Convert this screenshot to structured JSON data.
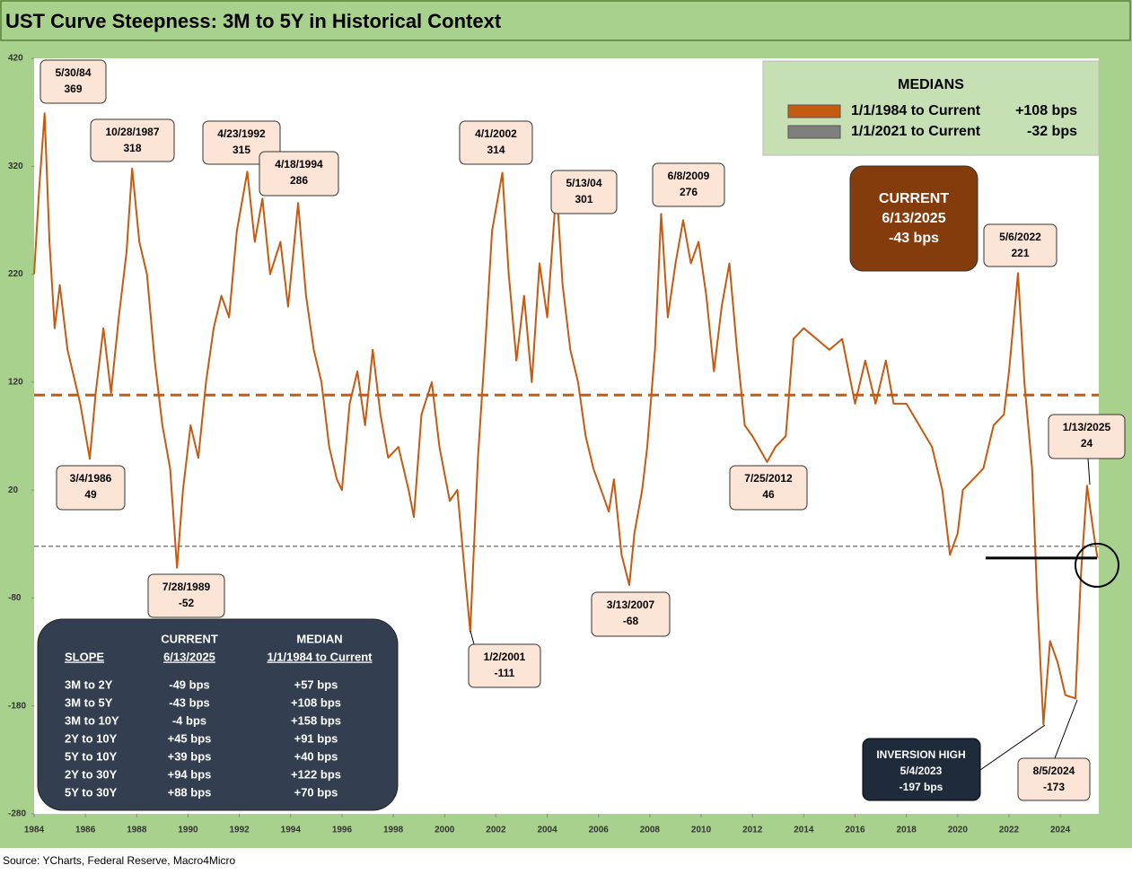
{
  "chart_data": {
    "type": "line",
    "title": "UST Curve Steepness: 3M to 5Y in Historical Context",
    "source": "Source: YCharts, Federal Reserve, Macro4Micro",
    "xlim": [
      1984,
      2025.5
    ],
    "xticks": [
      1984,
      1986,
      1988,
      1990,
      1992,
      1994,
      1996,
      1998,
      2000,
      2002,
      2004,
      2006,
      2008,
      2010,
      2012,
      2014,
      2016,
      2018,
      2020,
      2022,
      2024
    ],
    "ylim": [
      -280,
      420
    ],
    "yticks": [
      -280,
      -180,
      -80,
      20,
      120,
      220,
      320,
      420
    ],
    "series": [
      {
        "name": "3M to 5Y",
        "color": "#c55a11",
        "x": [
          1984.0,
          1984.2,
          1984.41,
          1984.6,
          1984.8,
          1985.0,
          1985.3,
          1985.6,
          1985.8,
          1986.17,
          1986.4,
          1986.7,
          1987.0,
          1987.3,
          1987.6,
          1987.82,
          1988.1,
          1988.4,
          1988.7,
          1989.0,
          1989.3,
          1989.57,
          1989.8,
          1990.1,
          1990.4,
          1990.7,
          1991.0,
          1991.3,
          1991.6,
          1991.9,
          1992.31,
          1992.6,
          1992.9,
          1993.2,
          1993.6,
          1993.9,
          1994.29,
          1994.6,
          1994.9,
          1995.2,
          1995.5,
          1995.8,
          1996.0,
          1996.3,
          1996.6,
          1996.9,
          1997.2,
          1997.5,
          1997.8,
          1998.2,
          1998.6,
          1998.8,
          1999.1,
          1999.5,
          1999.8,
          2000.2,
          2000.5,
          2000.8,
          2001.0,
          2001.3,
          2001.6,
          2001.85,
          2002.25,
          2002.5,
          2002.8,
          2003.1,
          2003.4,
          2003.7,
          2004.0,
          2004.36,
          2004.6,
          2004.9,
          2005.2,
          2005.5,
          2005.8,
          2006.1,
          2006.4,
          2006.6,
          2006.9,
          2007.2,
          2007.4,
          2007.7,
          2007.9,
          2008.2,
          2008.44,
          2008.7,
          2009.0,
          2009.3,
          2009.6,
          2009.9,
          2010.2,
          2010.5,
          2010.8,
          2011.1,
          2011.4,
          2011.7,
          2012.0,
          2012.57,
          2012.9,
          2013.3,
          2013.6,
          2014.0,
          2014.5,
          2015.0,
          2015.5,
          2016.0,
          2016.4,
          2016.8,
          2017.2,
          2017.5,
          2018.0,
          2018.5,
          2019.0,
          2019.4,
          2019.7,
          2020.0,
          2020.2,
          2020.6,
          2021.0,
          2021.4,
          2021.8,
          2022.0,
          2022.35,
          2022.6,
          2022.9,
          2023.1,
          2023.34,
          2023.6,
          2023.9,
          2024.2,
          2024.59,
          2024.8,
          2025.04,
          2025.3,
          2025.45
        ],
        "values": [
          220,
          300,
          369,
          250,
          170,
          210,
          150,
          120,
          100,
          49,
          110,
          170,
          110,
          180,
          240,
          318,
          250,
          220,
          140,
          80,
          40,
          -52,
          20,
          80,
          50,
          120,
          170,
          200,
          180,
          260,
          315,
          250,
          290,
          220,
          250,
          190,
          286,
          200,
          150,
          120,
          60,
          30,
          20,
          100,
          130,
          80,
          150,
          90,
          50,
          60,
          20,
          -5,
          90,
          120,
          60,
          10,
          20,
          -60,
          -111,
          50,
          160,
          260,
          314,
          220,
          140,
          200,
          120,
          230,
          180,
          301,
          210,
          150,
          120,
          70,
          40,
          20,
          0,
          30,
          -40,
          -68,
          -20,
          20,
          60,
          150,
          276,
          180,
          230,
          270,
          230,
          250,
          200,
          130,
          190,
          230,
          150,
          80,
          70,
          46,
          60,
          70,
          160,
          170,
          160,
          150,
          160,
          100,
          140,
          100,
          140,
          100,
          100,
          80,
          60,
          20,
          -40,
          -20,
          20,
          30,
          40,
          80,
          90,
          130,
          221,
          120,
          40,
          -80,
          -197,
          -120,
          -140,
          -170,
          -173,
          -60,
          24,
          -20,
          -43
        ]
      }
    ],
    "medians": {
      "title": "MEDIANS",
      "entries": [
        {
          "name": "1/1/1984 to Current",
          "value": 108,
          "label": "+108 bps",
          "color": "#c55a11"
        },
        {
          "name": "1/1/2021 to Current",
          "value": -32,
          "label": "-32 bps",
          "color": "#7f7f7f"
        }
      ]
    },
    "current": {
      "title": "CURRENT",
      "date": "6/13/2025",
      "value": -43,
      "value_label": "-43 bps"
    },
    "annotations": [
      {
        "date": "5/30/84",
        "value": 369
      },
      {
        "date": "10/28/1987",
        "value": 318
      },
      {
        "date": "4/23/1992",
        "value": 315
      },
      {
        "date": "4/18/1994",
        "value": 286
      },
      {
        "date": "4/1/2002",
        "value": 314
      },
      {
        "date": "5/13/04",
        "value": 301
      },
      {
        "date": "6/8/2009",
        "value": 276
      },
      {
        "date": "5/6/2022",
        "value": 221
      },
      {
        "date": "3/4/1986",
        "value": 49
      },
      {
        "date": "7/25/2012",
        "value": 46
      },
      {
        "date": "1/13/2025",
        "value": 24
      },
      {
        "date": "7/28/1989",
        "value": -52
      },
      {
        "date": "3/13/2007",
        "value": -68
      },
      {
        "date": "1/2/2001",
        "value": -111
      },
      {
        "date": "8/5/2024",
        "value": -173
      }
    ],
    "inversion": {
      "title": "INVERSION HIGH",
      "date": "5/4/2023",
      "value": -197,
      "value_label": "-197 bps"
    },
    "table": {
      "header": [
        "SLOPE",
        "CURRENT",
        "6/13/2025",
        "MEDIAN",
        "1/1/1984 to Current"
      ],
      "rows": [
        [
          "3M to 2Y",
          "-49 bps",
          "+57 bps"
        ],
        [
          "3M to 5Y",
          "-43 bps",
          "+108 bps"
        ],
        [
          "3M to 10Y",
          "-4 bps",
          "+158 bps"
        ],
        [
          "2Y to 10Y",
          "+45 bps",
          "+91 bps"
        ],
        [
          "5Y to 10Y",
          "+39 bps",
          "+40 bps"
        ],
        [
          "2Y to 30Y",
          "+94 bps",
          "+122 bps"
        ],
        [
          "5Y to 30Y",
          "+88 bps",
          "+70 bps"
        ]
      ]
    }
  }
}
